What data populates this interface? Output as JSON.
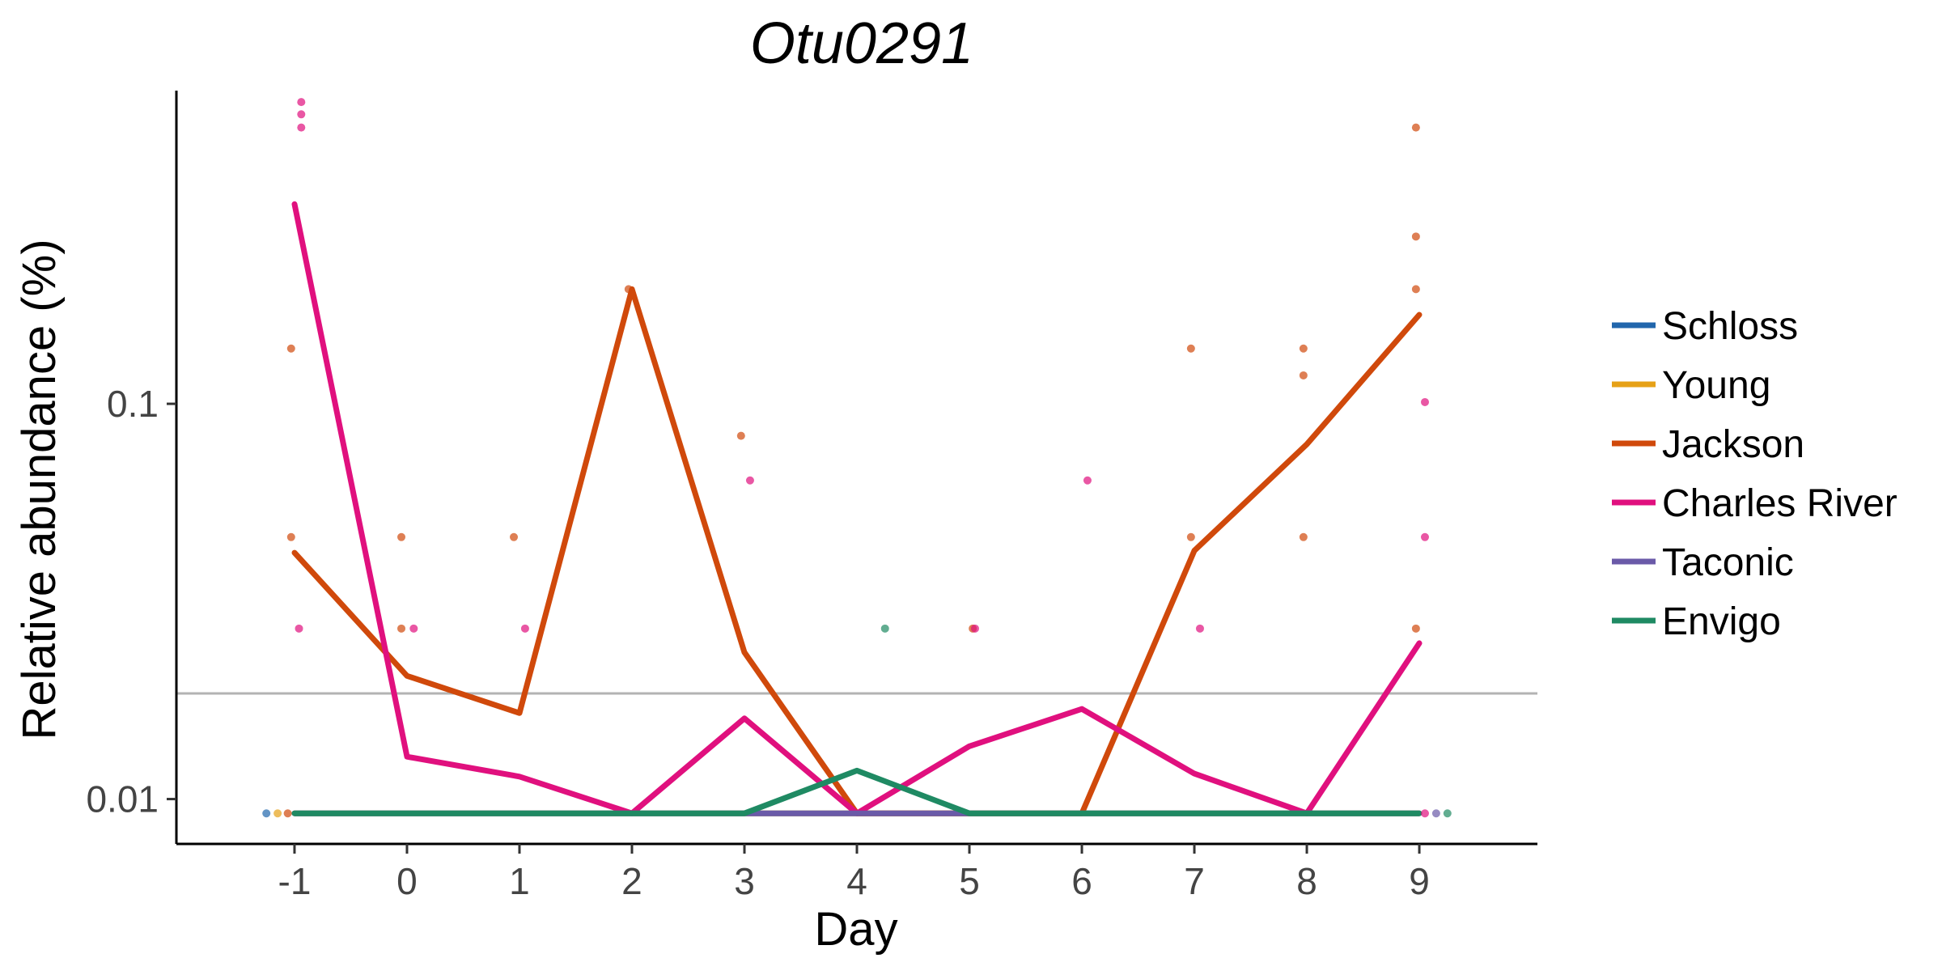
{
  "chart_data": {
    "type": "line",
    "title": "Otu0291",
    "xlabel": "Day",
    "ylabel": "Relative abundance (%)",
    "x_ticks": [
      "-1",
      "0",
      "1",
      "2",
      "3",
      "4",
      "5",
      "6",
      "7",
      "8",
      "9"
    ],
    "x_values": [
      -1,
      0,
      1,
      2,
      3,
      4,
      5,
      6,
      7,
      8,
      9
    ],
    "y_scale": "log10",
    "y_ticks": [
      {
        "value": 0.01,
        "label": "0.01"
      },
      {
        "value": 0.1,
        "label": "0.1"
      }
    ],
    "ylim": [
      0.0077,
      0.62
    ],
    "xlim": [
      -2.05,
      10.05
    ],
    "grid": false,
    "legend_position": "right",
    "reference_line": {
      "value": 0.0185,
      "color": "#b3b3b3"
    },
    "series": [
      {
        "name": "Schloss",
        "color": "#2166ac",
        "x": [
          -1,
          0,
          1,
          2,
          3,
          4,
          5,
          6,
          7,
          8,
          9
        ],
        "values": [
          0.0092,
          0.0092,
          0.0092,
          0.0092,
          0.0092,
          0.0092,
          0.0092,
          0.0092,
          0.0092,
          0.0092,
          0.0092
        ]
      },
      {
        "name": "Young",
        "color": "#e6a117",
        "x": [
          -1,
          0,
          1,
          2,
          3,
          4,
          5,
          6,
          7,
          8,
          9
        ],
        "values": [
          0.0092,
          0.0092,
          0.0092,
          0.0092,
          0.0092,
          0.0092,
          0.0092,
          0.0092,
          0.0092,
          0.0092,
          0.0092
        ]
      },
      {
        "name": "Jackson",
        "color": "#d0490b",
        "x": [
          -1,
          0,
          1,
          2,
          3,
          4,
          5,
          6,
          7,
          8,
          9
        ],
        "values": [
          0.042,
          0.0205,
          0.0165,
          0.195,
          0.0235,
          0.0092,
          0.0092,
          0.0092,
          0.0425,
          0.079,
          0.168
        ]
      },
      {
        "name": "Charles River",
        "color": "#e0107e",
        "x": [
          -1,
          0,
          1,
          2,
          3,
          4,
          5,
          6,
          7,
          8,
          9
        ],
        "values": [
          0.32,
          0.0128,
          0.0114,
          0.0092,
          0.016,
          0.0092,
          0.0136,
          0.0169,
          0.0116,
          0.0092,
          0.0248
        ]
      },
      {
        "name": "Taconic",
        "color": "#6a5aa8",
        "x": [
          -1,
          0,
          1,
          2,
          3,
          4,
          5,
          6,
          7,
          8,
          9
        ],
        "values": [
          0.0092,
          0.0092,
          0.0092,
          0.0092,
          0.0092,
          0.0092,
          0.0092,
          0.0092,
          0.0092,
          0.0092,
          0.0092
        ]
      },
      {
        "name": "Envigo",
        "color": "#1f8a63",
        "x": [
          -1,
          0,
          1,
          2,
          3,
          4,
          5,
          6,
          7,
          8,
          9
        ],
        "values": [
          0.0092,
          0.0092,
          0.0092,
          0.0092,
          0.0092,
          0.0118,
          0.0092,
          0.0092,
          0.0092,
          0.0092,
          0.0092
        ]
      }
    ],
    "points": [
      {
        "series": "Jackson",
        "x": -1.03,
        "y": 0.138
      },
      {
        "series": "Jackson",
        "x": -1.03,
        "y": 0.046
      },
      {
        "series": "Charles River",
        "x": -0.94,
        "y": 0.58
      },
      {
        "series": "Charles River",
        "x": -0.94,
        "y": 0.54
      },
      {
        "series": "Charles River",
        "x": -0.94,
        "y": 0.5
      },
      {
        "series": "Charles River",
        "x": -0.96,
        "y": 0.027
      },
      {
        "series": "Jackson",
        "x": -0.05,
        "y": 0.046
      },
      {
        "series": "Jackson",
        "x": -0.05,
        "y": 0.027
      },
      {
        "series": "Charles River",
        "x": 0.06,
        "y": 0.027
      },
      {
        "series": "Jackson",
        "x": 0.95,
        "y": 0.046
      },
      {
        "series": "Charles River",
        "x": 1.05,
        "y": 0.027
      },
      {
        "series": "Jackson",
        "x": 1.97,
        "y": 0.195
      },
      {
        "series": "Jackson",
        "x": 2.97,
        "y": 0.083
      },
      {
        "series": "Charles River",
        "x": 3.05,
        "y": 0.064
      },
      {
        "series": "Envigo",
        "x": 4.25,
        "y": 0.027
      },
      {
        "series": "Jackson",
        "x": 5.03,
        "y": 0.027
      },
      {
        "series": "Charles River",
        "x": 5.05,
        "y": 0.027
      },
      {
        "series": "Charles River",
        "x": 6.05,
        "y": 0.064
      },
      {
        "series": "Jackson",
        "x": 6.97,
        "y": 0.138
      },
      {
        "series": "Jackson",
        "x": 6.97,
        "y": 0.046
      },
      {
        "series": "Charles River",
        "x": 7.05,
        "y": 0.027
      },
      {
        "series": "Jackson",
        "x": 7.97,
        "y": 0.138
      },
      {
        "series": "Jackson",
        "x": 7.97,
        "y": 0.118
      },
      {
        "series": "Jackson",
        "x": 7.97,
        "y": 0.046
      },
      {
        "series": "Jackson",
        "x": 8.97,
        "y": 0.5
      },
      {
        "series": "Jackson",
        "x": 8.97,
        "y": 0.265
      },
      {
        "series": "Jackson",
        "x": 8.97,
        "y": 0.195
      },
      {
        "series": "Jackson",
        "x": 8.97,
        "y": 0.027
      },
      {
        "series": "Charles River",
        "x": 9.05,
        "y": 0.101
      },
      {
        "series": "Charles River",
        "x": 9.05,
        "y": 0.046
      },
      {
        "series": "Schloss",
        "x": -1.25,
        "y": 0.0092
      },
      {
        "series": "Young",
        "x": -1.15,
        "y": 0.0092
      },
      {
        "series": "Jackson",
        "x": -1.06,
        "y": 0.0092
      },
      {
        "series": "Charles River",
        "x": 9.05,
        "y": 0.0092
      },
      {
        "series": "Taconic",
        "x": 9.15,
        "y": 0.0092
      },
      {
        "series": "Envigo",
        "x": 9.25,
        "y": 0.0092
      }
    ]
  }
}
